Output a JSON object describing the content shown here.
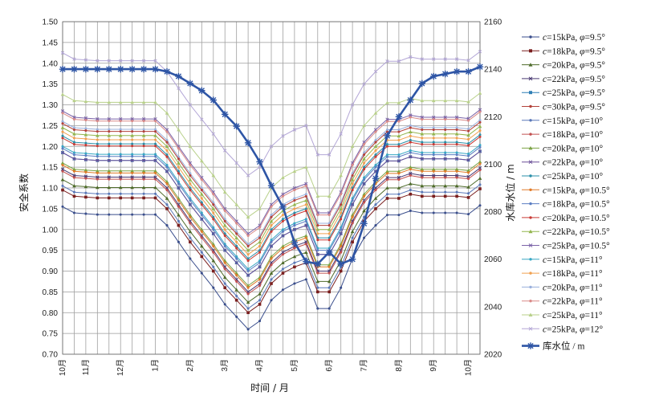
{
  "chart_data": {
    "type": "line",
    "xlabel": "时间 / 月",
    "ylabel_left": "安全系数",
    "ylabel_right": "水库水位 / m",
    "categories": [
      "10月",
      "11月",
      "12月",
      "1月",
      "2月",
      "3月",
      "4月",
      "5月",
      "6月",
      "7月",
      "8月",
      "9月",
      "10月"
    ],
    "category_index": [
      0,
      2,
      5,
      8,
      11,
      14,
      17,
      20,
      23,
      26,
      29,
      32,
      35
    ],
    "n_points": 37,
    "ylim_left": [
      0.7,
      1.5
    ],
    "ytick_step_left": 0.05,
    "ylim_right": [
      2020,
      2160
    ],
    "yticks_right": [
      2020,
      2040,
      2060,
      2080,
      2100,
      2120,
      2140,
      2160
    ],
    "legend_position": "right",
    "grid": true,
    "fs_series": [
      {
        "name": "c=15kPa, φ=9.5°",
        "color": "#3a4e8c",
        "marker": "dot",
        "base": [
          1.055,
          1.04,
          1.038,
          1.036,
          1.036,
          1.036,
          1.036,
          1.036,
          1.036,
          1.01,
          0.97,
          0.93,
          0.895,
          0.86,
          0.82,
          0.79,
          0.76,
          0.78,
          0.83,
          0.855,
          0.87,
          0.88,
          0.81,
          0.81,
          0.86,
          0.93,
          0.98,
          1.01,
          1.035,
          1.035,
          1.045,
          1.04,
          1.04,
          1.04,
          1.04,
          1.037,
          1.058
        ]
      },
      {
        "name": "c=18kPa, φ=9.5°",
        "color": "#7a1e1e",
        "marker": "square",
        "offset": 0.04
      },
      {
        "name": "c=20kPa, φ=9.5°",
        "color": "#4e6b2a",
        "marker": "triangle",
        "offset": 0.065
      },
      {
        "name": "c=22kPa, φ=9.5°",
        "color": "#4a3a73",
        "marker": "cross",
        "offset": 0.09
      },
      {
        "name": "c=25kPa, φ=9.5°",
        "color": "#2f7fb5",
        "marker": "square",
        "offset": 0.13
      },
      {
        "name": "c=30kPa, φ=9.5°",
        "color": "#b3423a",
        "marker": "dot",
        "offset": 0.2
      },
      {
        "name": "c=15kPa, φ=10°",
        "color": "#5a78b8",
        "marker": "dot",
        "offset": 0.05
      },
      {
        "name": "c=18kPa, φ=10°",
        "color": "#c25050",
        "marker": "dot",
        "offset": 0.085
      },
      {
        "name": "c=20kPa, φ=10°",
        "color": "#7ba345",
        "marker": "triangle",
        "offset": 0.105
      },
      {
        "name": "c=22kPa, φ=10°",
        "color": "#6a4f97",
        "marker": "cross",
        "offset": 0.13
      },
      {
        "name": "c=25kPa, φ=10°",
        "color": "#2a8fa8",
        "marker": "dot",
        "offset": 0.17
      },
      {
        "name": "c=15kPa, φ=10.5°",
        "color": "#e07a28",
        "marker": "dot",
        "offset": 0.1
      },
      {
        "name": "c=18kPa, φ=10.5°",
        "color": "#5b7ec2",
        "marker": "dot",
        "offset": 0.14
      },
      {
        "name": "c=20kPa, φ=10.5°",
        "color": "#c93b36",
        "marker": "dot",
        "offset": 0.165
      },
      {
        "name": "c=22kPa, φ=10.5°",
        "color": "#93b54e",
        "marker": "triangle",
        "offset": 0.19
      },
      {
        "name": "c=25kPa, φ=10.5°",
        "color": "#7b63a8",
        "marker": "cross",
        "offset": 0.23
      },
      {
        "name": "c=15kPa, φ=11°",
        "color": "#38a7c4",
        "marker": "dot",
        "offset": 0.145
      },
      {
        "name": "c=18kPa, φ=11°",
        "color": "#f0a050",
        "marker": "dot",
        "offset": 0.18
      },
      {
        "name": "c=20kPa, φ=11°",
        "color": "#9ab0dc",
        "marker": "dot",
        "offset": 0.205
      },
      {
        "name": "c=22kPa, φ=11°",
        "color": "#d98a88",
        "marker": "dot",
        "offset": 0.225
      },
      {
        "name": "c=25kPa, φ=11°",
        "color": "#b8d08a",
        "marker": "triangle",
        "offset": 0.27
      },
      {
        "name": "c=25kPa, φ=12°",
        "color": "#b3a6d6",
        "marker": "cross",
        "offset": 0.37
      }
    ],
    "water_level_series": {
      "name": "库水位 / m",
      "color": "#2e55a5",
      "marker": "star",
      "values": [
        2140,
        2140,
        2140,
        2140,
        2140,
        2140,
        2140,
        2140,
        2140,
        2139,
        2137,
        2134,
        2131,
        2127,
        2121,
        2116,
        2109,
        2101,
        2091,
        2082,
        2067,
        2059,
        2058,
        2063,
        2058,
        2060,
        2075,
        2094,
        2112,
        2120,
        2127,
        2134,
        2137,
        2138,
        2139,
        2139,
        2141
      ]
    }
  }
}
